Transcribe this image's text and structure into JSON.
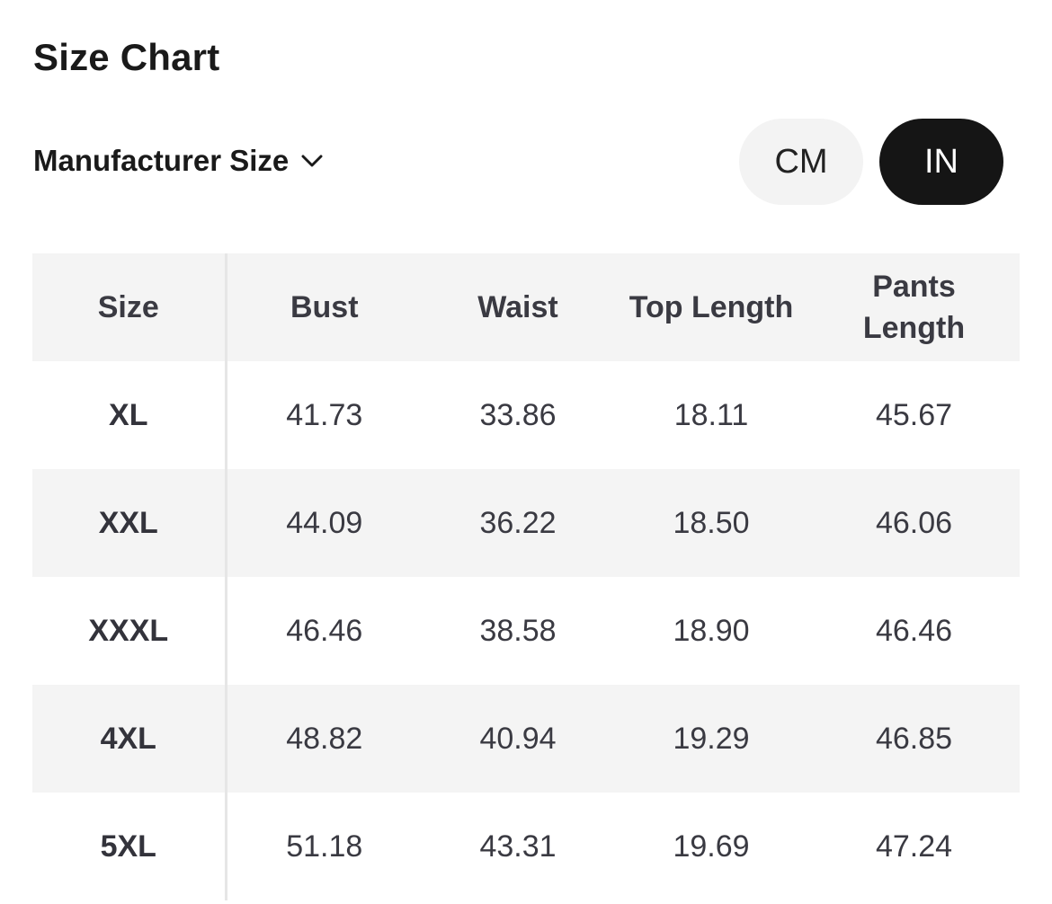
{
  "header": {
    "title": "Size Chart",
    "size_type": "Manufacturer Size",
    "units": [
      "CM",
      "IN"
    ]
  },
  "table": {
    "columns": [
      "Size",
      "Bust",
      "Waist",
      "Top Length",
      "Pants Length"
    ],
    "rows": [
      [
        "XL",
        "41.73",
        "33.86",
        "18.11",
        "45.67"
      ],
      [
        "XXL",
        "44.09",
        "36.22",
        "18.50",
        "46.06"
      ],
      [
        "XXXL",
        "46.46",
        "38.58",
        "18.90",
        "46.46"
      ],
      [
        "4XL",
        "48.82",
        "40.94",
        "19.29",
        "46.85"
      ],
      [
        "5XL",
        "51.18",
        "43.31",
        "19.69",
        "47.24"
      ]
    ]
  }
}
